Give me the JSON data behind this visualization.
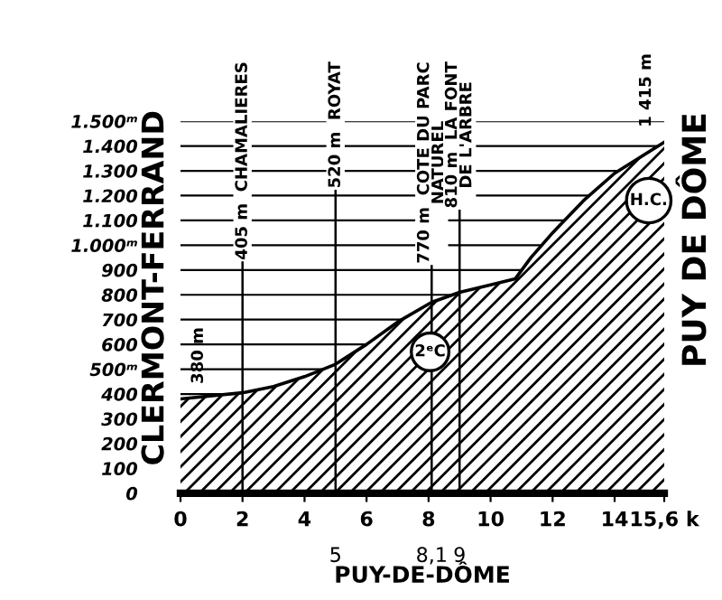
{
  "chart_data": {
    "type": "area",
    "xlabel": "PUY-DE-DÔME",
    "x": [
      0,
      2,
      3,
      4,
      5,
      6,
      7,
      8.1,
      9,
      10,
      10.8,
      11.3,
      12,
      13,
      14,
      15.6
    ],
    "values": [
      380,
      405,
      430,
      470,
      520,
      600,
      690,
      770,
      810,
      840,
      865,
      950,
      1050,
      1180,
      1290,
      1415
    ],
    "color": "#ffffff",
    "xlim": [
      0,
      15.6
    ],
    "xticks": [
      0,
      2,
      4,
      6,
      8,
      10,
      12,
      14,
      {
        "value": 15.6,
        "label": "15,6 k"
      }
    ],
    "x2lim": [
      0,
      15.6
    ],
    "x2ticks": [
      5,
      {
        "value": 8.1,
        "label": "8,1"
      },
      9
    ],
    "ylim": [
      0,
      1500
    ],
    "yticks": [
      0,
      100,
      200,
      300,
      400,
      {
        "value": 500,
        "label": "500ᵐ"
      },
      600,
      700,
      800,
      900,
      {
        "value": 1000,
        "label": "1.000ᵐ"
      },
      {
        "value": 1100,
        "label": "1.100"
      },
      {
        "value": 1200,
        "label": "1.200"
      },
      {
        "value": 1300,
        "label": "1.300"
      },
      {
        "value": 1400,
        "label": "1.400"
      },
      {
        "value": 1500,
        "label": "1.500ᵐ"
      }
    ],
    "grid": "y",
    "legend": false,
    "ref_lines": [
      {
        "axis": "x",
        "value": 2,
        "label": "405 m  CHAMALIERES"
      },
      {
        "axis": "x",
        "value": 5,
        "label": "520 m  ROYAT"
      },
      {
        "axis": "x",
        "value": 8.1,
        "label": "770 m  COTE DU PARC\nNATUREL"
      },
      {
        "axis": "x",
        "value": 9,
        "label": "810 m  LA FONT\nDE L'ARBRE"
      }
    ],
    "annotations": [
      "CLERMONT-FERRAND",
      "PUY DE DÔME",
      {
        "text": "380 m",
        "x": 0,
        "y": 380
      },
      {
        "text": "1 415 m",
        "x": 15.6,
        "y": 1415
      },
      {
        "text": "2ᵉC",
        "x": 8.05,
        "y": 570
      },
      {
        "text": "H.C.",
        "x": 15.1,
        "y": 1180
      }
    ]
  }
}
